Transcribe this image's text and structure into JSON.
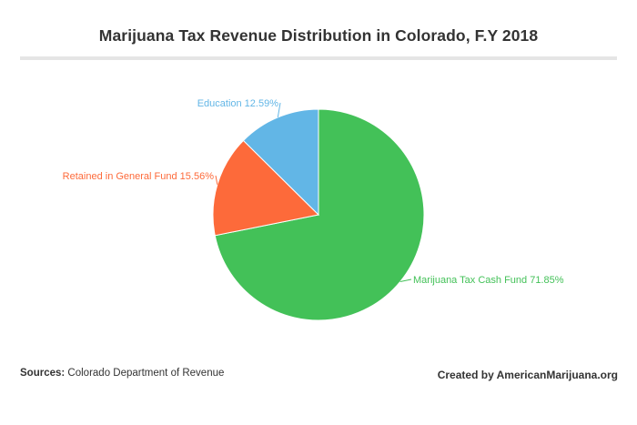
{
  "chart_data": {
    "type": "pie",
    "title": "Marijuana Tax Revenue Distribution in Colorado, F.Y 2018",
    "slices": [
      {
        "label": "Marijuana Tax Cash Fund",
        "value": 71.85,
        "display": "Marijuana Tax Cash Fund 71.85%",
        "color": "#43c158"
      },
      {
        "label": "Retained in General Fund",
        "value": 15.56,
        "display": "Retained in General Fund 15.56%",
        "color": "#fd6a3a"
      },
      {
        "label": "Education",
        "value": 12.59,
        "display": "Education 12.59%",
        "color": "#62b6e6"
      }
    ],
    "unit": "%"
  },
  "footer": {
    "sources_label": "Sources:",
    "sources_text": "Colorado Department of Revenue",
    "credit": "Created by AmericanMarijuana.org"
  }
}
